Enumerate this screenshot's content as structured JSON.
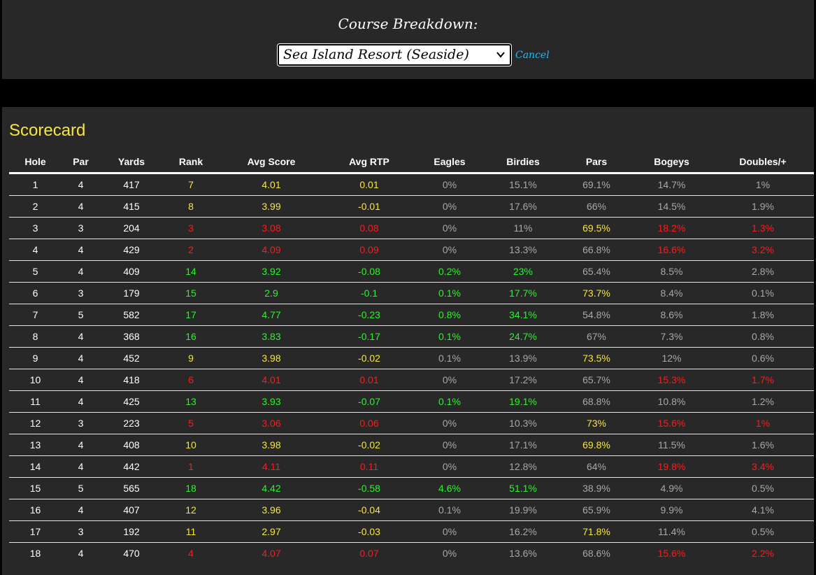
{
  "header": {
    "title": "Course Breakdown:",
    "selected_course": "Sea Island Resort (Seaside)",
    "cancel_label": "Cancel"
  },
  "scorecard": {
    "title": "Scorecard",
    "columns": [
      "Hole",
      "Par",
      "Yards",
      "Rank",
      "Avg Score",
      "Avg RTP",
      "Eagles",
      "Birdies",
      "Pars",
      "Bogeys",
      "Doubles/+"
    ],
    "rows": [
      {
        "hole": "1",
        "par": "4",
        "yards": "417",
        "rank": "7",
        "avg_score": "4.01",
        "avg_rtp": "0.01",
        "eagles": "0%",
        "birdies": "15.1%",
        "pars": "69.1%",
        "bogeys": "14.7%",
        "doubles": "1%",
        "colors": [
          "white",
          "white",
          "white",
          "yellow",
          "yellow",
          "yellow",
          "gray",
          "gray",
          "gray",
          "gray",
          "gray"
        ]
      },
      {
        "hole": "2",
        "par": "4",
        "yards": "415",
        "rank": "8",
        "avg_score": "3.99",
        "avg_rtp": "-0.01",
        "eagles": "0%",
        "birdies": "17.6%",
        "pars": "66%",
        "bogeys": "14.5%",
        "doubles": "1.9%",
        "colors": [
          "white",
          "white",
          "white",
          "yellow",
          "yellow",
          "yellow",
          "gray",
          "gray",
          "gray",
          "gray",
          "gray"
        ]
      },
      {
        "hole": "3",
        "par": "3",
        "yards": "204",
        "rank": "3",
        "avg_score": "3.08",
        "avg_rtp": "0.08",
        "eagles": "0%",
        "birdies": "11%",
        "pars": "69.5%",
        "bogeys": "18.2%",
        "doubles": "1.3%",
        "colors": [
          "white",
          "white",
          "white",
          "red",
          "red",
          "red",
          "gray",
          "gray",
          "yellow",
          "red",
          "red"
        ]
      },
      {
        "hole": "4",
        "par": "4",
        "yards": "429",
        "rank": "2",
        "avg_score": "4.09",
        "avg_rtp": "0.09",
        "eagles": "0%",
        "birdies": "13.3%",
        "pars": "66.8%",
        "bogeys": "16.6%",
        "doubles": "3.2%",
        "colors": [
          "white",
          "white",
          "white",
          "red",
          "red",
          "red",
          "gray",
          "gray",
          "gray",
          "red",
          "red"
        ]
      },
      {
        "hole": "5",
        "par": "4",
        "yards": "409",
        "rank": "14",
        "avg_score": "3.92",
        "avg_rtp": "-0.08",
        "eagles": "0.2%",
        "birdies": "23%",
        "pars": "65.4%",
        "bogeys": "8.5%",
        "doubles": "2.8%",
        "colors": [
          "white",
          "white",
          "white",
          "green",
          "green",
          "green",
          "green",
          "green",
          "gray",
          "gray",
          "gray"
        ]
      },
      {
        "hole": "6",
        "par": "3",
        "yards": "179",
        "rank": "15",
        "avg_score": "2.9",
        "avg_rtp": "-0.1",
        "eagles": "0.1%",
        "birdies": "17.7%",
        "pars": "73.7%",
        "bogeys": "8.4%",
        "doubles": "0.1%",
        "colors": [
          "white",
          "white",
          "white",
          "green",
          "green",
          "green",
          "green",
          "green",
          "yellow",
          "gray",
          "gray"
        ]
      },
      {
        "hole": "7",
        "par": "5",
        "yards": "582",
        "rank": "17",
        "avg_score": "4.77",
        "avg_rtp": "-0.23",
        "eagles": "0.8%",
        "birdies": "34.1%",
        "pars": "54.8%",
        "bogeys": "8.6%",
        "doubles": "1.8%",
        "colors": [
          "white",
          "white",
          "white",
          "green",
          "green",
          "green",
          "green",
          "green",
          "gray",
          "gray",
          "gray"
        ]
      },
      {
        "hole": "8",
        "par": "4",
        "yards": "368",
        "rank": "16",
        "avg_score": "3.83",
        "avg_rtp": "-0.17",
        "eagles": "0.1%",
        "birdies": "24.7%",
        "pars": "67%",
        "bogeys": "7.3%",
        "doubles": "0.8%",
        "colors": [
          "white",
          "white",
          "white",
          "green",
          "green",
          "green",
          "green",
          "green",
          "gray",
          "gray",
          "gray"
        ]
      },
      {
        "hole": "9",
        "par": "4",
        "yards": "452",
        "rank": "9",
        "avg_score": "3.98",
        "avg_rtp": "-0.02",
        "eagles": "0.1%",
        "birdies": "13.9%",
        "pars": "73.5%",
        "bogeys": "12%",
        "doubles": "0.6%",
        "colors": [
          "white",
          "white",
          "white",
          "yellow",
          "yellow",
          "yellow",
          "gray",
          "gray",
          "yellow",
          "gray",
          "gray"
        ]
      },
      {
        "hole": "10",
        "par": "4",
        "yards": "418",
        "rank": "6",
        "avg_score": "4.01",
        "avg_rtp": "0.01",
        "eagles": "0%",
        "birdies": "17.2%",
        "pars": "65.7%",
        "bogeys": "15.3%",
        "doubles": "1.7%",
        "colors": [
          "white",
          "white",
          "white",
          "red",
          "red",
          "red",
          "gray",
          "gray",
          "gray",
          "red",
          "red"
        ]
      },
      {
        "hole": "11",
        "par": "4",
        "yards": "425",
        "rank": "13",
        "avg_score": "3.93",
        "avg_rtp": "-0.07",
        "eagles": "0.1%",
        "birdies": "19.1%",
        "pars": "68.8%",
        "bogeys": "10.8%",
        "doubles": "1.2%",
        "colors": [
          "white",
          "white",
          "white",
          "green",
          "green",
          "green",
          "green",
          "green",
          "gray",
          "gray",
          "gray"
        ]
      },
      {
        "hole": "12",
        "par": "3",
        "yards": "223",
        "rank": "5",
        "avg_score": "3.06",
        "avg_rtp": "0.06",
        "eagles": "0%",
        "birdies": "10.3%",
        "pars": "73%",
        "bogeys": "15.6%",
        "doubles": "1%",
        "colors": [
          "white",
          "white",
          "white",
          "red",
          "red",
          "red",
          "gray",
          "gray",
          "yellow",
          "red",
          "red"
        ]
      },
      {
        "hole": "13",
        "par": "4",
        "yards": "408",
        "rank": "10",
        "avg_score": "3.98",
        "avg_rtp": "-0.02",
        "eagles": "0%",
        "birdies": "17.1%",
        "pars": "69.8%",
        "bogeys": "11.5%",
        "doubles": "1.6%",
        "colors": [
          "white",
          "white",
          "white",
          "yellow",
          "yellow",
          "yellow",
          "gray",
          "gray",
          "yellow",
          "gray",
          "gray"
        ]
      },
      {
        "hole": "14",
        "par": "4",
        "yards": "442",
        "rank": "1",
        "avg_score": "4.11",
        "avg_rtp": "0.11",
        "eagles": "0%",
        "birdies": "12.8%",
        "pars": "64%",
        "bogeys": "19.8%",
        "doubles": "3.4%",
        "colors": [
          "white",
          "white",
          "white",
          "red",
          "red",
          "red",
          "gray",
          "gray",
          "gray",
          "red",
          "red"
        ]
      },
      {
        "hole": "15",
        "par": "5",
        "yards": "565",
        "rank": "18",
        "avg_score": "4.42",
        "avg_rtp": "-0.58",
        "eagles": "4.6%",
        "birdies": "51.1%",
        "pars": "38.9%",
        "bogeys": "4.9%",
        "doubles": "0.5%",
        "colors": [
          "white",
          "white",
          "white",
          "green",
          "green",
          "green",
          "green",
          "green",
          "gray",
          "gray",
          "gray"
        ]
      },
      {
        "hole": "16",
        "par": "4",
        "yards": "407",
        "rank": "12",
        "avg_score": "3.96",
        "avg_rtp": "-0.04",
        "eagles": "0.1%",
        "birdies": "19.9%",
        "pars": "65.9%",
        "bogeys": "9.9%",
        "doubles": "4.1%",
        "colors": [
          "white",
          "white",
          "white",
          "yellow",
          "yellow",
          "yellow",
          "gray",
          "gray",
          "gray",
          "gray",
          "gray"
        ]
      },
      {
        "hole": "17",
        "par": "3",
        "yards": "192",
        "rank": "11",
        "avg_score": "2.97",
        "avg_rtp": "-0.03",
        "eagles": "0%",
        "birdies": "16.2%",
        "pars": "71.8%",
        "bogeys": "11.4%",
        "doubles": "0.5%",
        "colors": [
          "white",
          "white",
          "white",
          "yellow",
          "yellow",
          "yellow",
          "gray",
          "gray",
          "yellow",
          "gray",
          "gray"
        ]
      },
      {
        "hole": "18",
        "par": "4",
        "yards": "470",
        "rank": "4",
        "avg_score": "4.07",
        "avg_rtp": "0.07",
        "eagles": "0%",
        "birdies": "13.6%",
        "pars": "68.6%",
        "bogeys": "15.6%",
        "doubles": "2.2%",
        "colors": [
          "white",
          "white",
          "white",
          "red",
          "red",
          "red",
          "gray",
          "gray",
          "gray",
          "red",
          "red"
        ]
      }
    ]
  },
  "colors": {
    "background": "#000000",
    "panel": "#282828",
    "white": "#ffffff",
    "yellow": "#f5e642",
    "red": "#ff1a1a",
    "green": "#2df22d",
    "gray": "#a8a8a8",
    "link": "#29b6f6"
  }
}
